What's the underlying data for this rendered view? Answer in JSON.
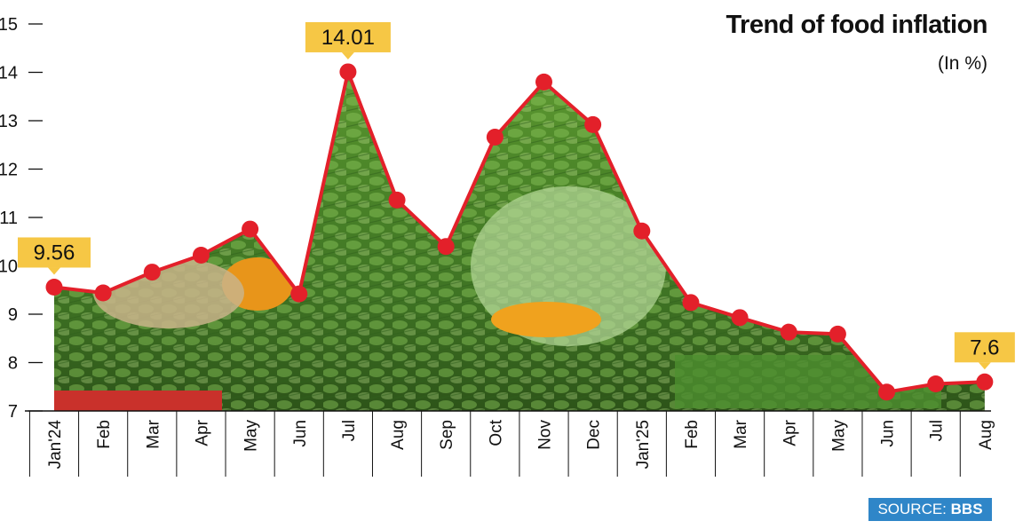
{
  "chart_data": {
    "type": "line",
    "title": "Trend of food inflation",
    "subtitle": "(In %)",
    "categories": [
      "Jan'24",
      "Feb",
      "Mar",
      "Apr",
      "May",
      "Jun",
      "Jul",
      "Aug",
      "Sep",
      "Oct",
      "Nov",
      "Dec",
      "Jan'25",
      "Feb",
      "Mar",
      "Apr",
      "May",
      "Jun",
      "Jul",
      "Aug"
    ],
    "values": [
      9.56,
      9.44,
      9.87,
      10.22,
      10.76,
      9.42,
      14.01,
      11.36,
      10.4,
      12.66,
      13.8,
      12.92,
      10.72,
      9.24,
      8.93,
      8.63,
      8.59,
      7.39,
      7.56,
      7.6
    ],
    "ylim": [
      7,
      15
    ],
    "yticks": [
      7,
      8,
      9,
      10,
      11,
      12,
      13,
      14,
      15
    ],
    "callouts": [
      {
        "index": 0,
        "label": "9.56"
      },
      {
        "index": 6,
        "label": "14.01"
      },
      {
        "index": 19,
        "label": "7.6"
      }
    ],
    "grid": false,
    "line_color": "#e3202a",
    "callout_color": "#f6c745"
  },
  "source": {
    "prefix": "SOURCE: ",
    "name": "BBS"
  }
}
